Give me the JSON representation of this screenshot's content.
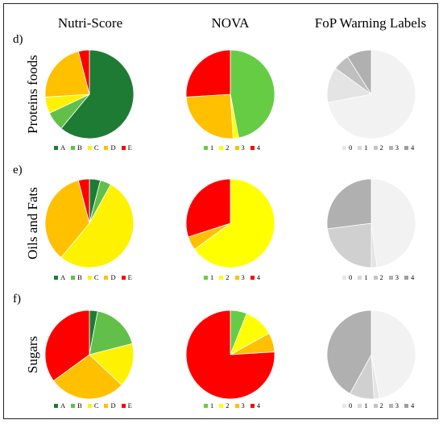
{
  "columns": [
    "Nutri-Score",
    "NOVA",
    "FoP Warning Labels"
  ],
  "rows": [
    {
      "letter": "d)",
      "label": "Proteins foods"
    },
    {
      "letter": "e)",
      "label": "Oils and Fats"
    },
    {
      "letter": "f)",
      "label": "Sugars"
    }
  ],
  "colors": {
    "nutri": [
      "#1e7b34",
      "#62bf4a",
      "#fff200",
      "#ffc000",
      "#ff0000"
    ],
    "nova": [
      "#66cc44",
      "#ffff00",
      "#ffc000",
      "#ff0000"
    ],
    "fop": [
      "#f2f2f2",
      "#e4e4e4",
      "#d0d0d0",
      "#bfbfbf",
      "#b0b0b0"
    ]
  },
  "legends": {
    "nutri": [
      "A",
      "B",
      "C",
      "D",
      "E"
    ],
    "nova": [
      "1",
      "2",
      "3",
      "4"
    ],
    "fop": [
      "0",
      "1",
      "2",
      "3",
      "4"
    ]
  },
  "chart_data": [
    {
      "type": "pie",
      "row": "Proteins foods",
      "column": "Nutri-Score",
      "categories": [
        "A",
        "B",
        "C",
        "D",
        "E"
      ],
      "values": [
        61,
        7,
        6,
        22,
        4
      ]
    },
    {
      "type": "pie",
      "row": "Proteins foods",
      "column": "NOVA",
      "categories": [
        "1",
        "2",
        "3",
        "4"
      ],
      "values": [
        47,
        2,
        25,
        26
      ]
    },
    {
      "type": "pie",
      "row": "Proteins foods",
      "column": "FoP Warning Labels",
      "categories": [
        "0",
        "1",
        "2",
        "3",
        "4"
      ],
      "values": [
        72,
        13,
        0,
        6,
        9
      ]
    },
    {
      "type": "pie",
      "row": "Oils and Fats",
      "column": "Nutri-Score",
      "categories": [
        "A",
        "B",
        "C",
        "D",
        "E"
      ],
      "values": [
        4,
        4,
        53,
        35,
        4
      ]
    },
    {
      "type": "pie",
      "row": "Oils and Fats",
      "column": "NOVA",
      "categories": [
        "1",
        "2",
        "3",
        "4"
      ],
      "values": [
        0,
        65,
        5,
        30
      ]
    },
    {
      "type": "pie",
      "row": "Oils and Fats",
      "column": "FoP Warning Labels",
      "categories": [
        "0",
        "1",
        "2",
        "3",
        "4"
      ],
      "values": [
        48,
        2,
        23,
        0,
        27
      ]
    },
    {
      "type": "pie",
      "row": "Sugars",
      "column": "Nutri-Score",
      "categories": [
        "A",
        "B",
        "C",
        "D",
        "E"
      ],
      "values": [
        3,
        18,
        16,
        28,
        35
      ]
    },
    {
      "type": "pie",
      "row": "Sugars",
      "column": "NOVA",
      "categories": [
        "1",
        "2",
        "3",
        "4"
      ],
      "values": [
        6,
        11,
        7,
        76
      ]
    },
    {
      "type": "pie",
      "row": "Sugars",
      "column": "FoP Warning Labels",
      "categories": [
        "0",
        "1",
        "2",
        "3",
        "4"
      ],
      "values": [
        47,
        2,
        9,
        0,
        42
      ]
    }
  ]
}
